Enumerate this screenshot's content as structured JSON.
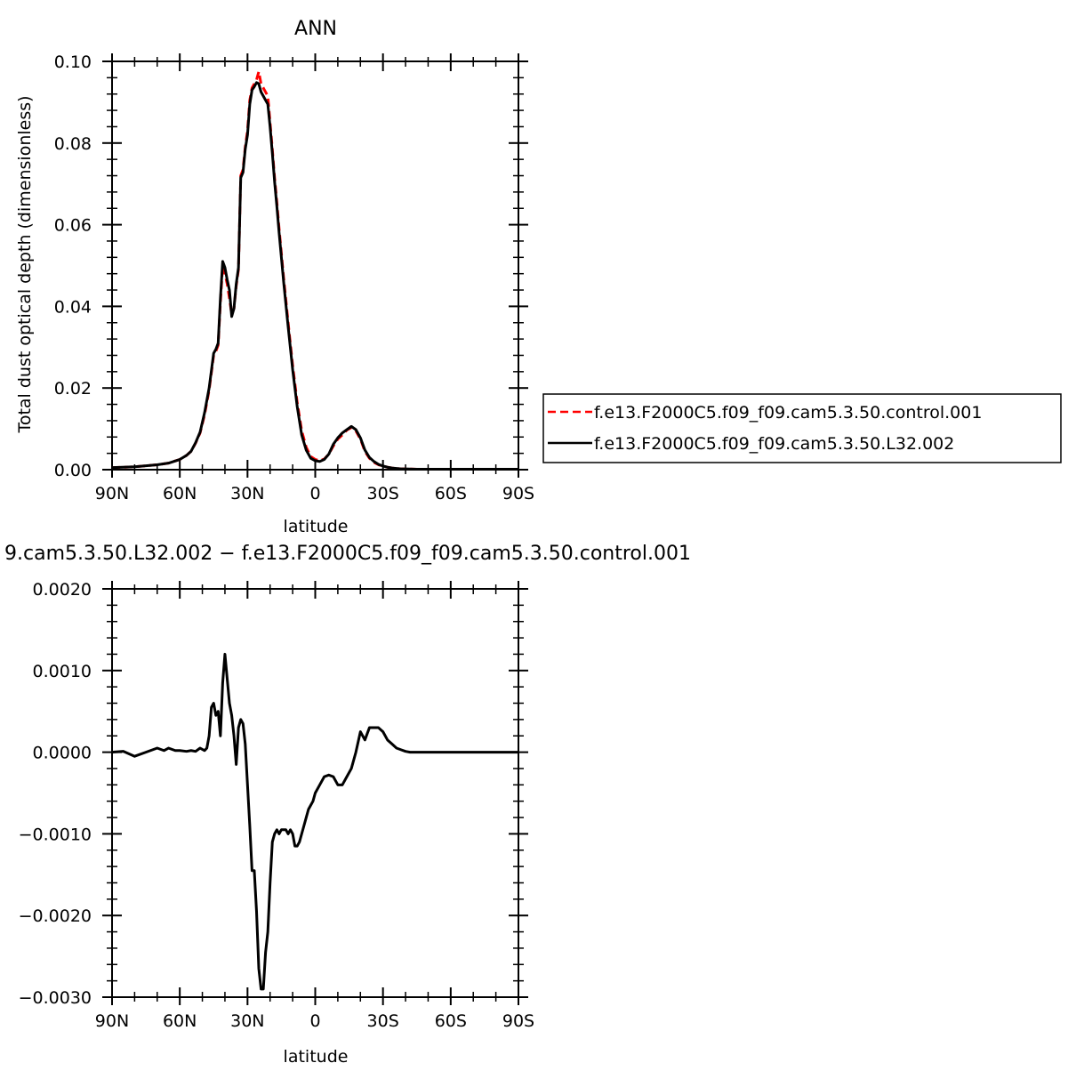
{
  "chart_data": [
    {
      "type": "line",
      "title": "ANN",
      "xlabel": "latitude",
      "ylabel": "Total dust optical depth (dimensionless)",
      "xlim": [
        90,
        -90
      ],
      "ylim": [
        0.0,
        0.1
      ],
      "x_tick_values": [
        90,
        60,
        30,
        0,
        -30,
        -60,
        -90
      ],
      "x_tick_labels": [
        "90N",
        "60N",
        "30N",
        "0",
        "30S",
        "60S",
        "90S"
      ],
      "y_tick_values": [
        0.0,
        0.02,
        0.04,
        0.06,
        0.08,
        0.1
      ],
      "y_tick_labels": [
        "0.00",
        "0.02",
        "0.04",
        "0.06",
        "0.08",
        "0.10"
      ],
      "grid": false,
      "legend_position": "right",
      "series": [
        {
          "name": "f.e13.F2000C5.f09_f09.cam5.3.50.control.001",
          "color": "#ff0000",
          "dash": "dashed",
          "x": [
            90,
            80,
            70,
            65,
            60,
            57,
            55,
            53,
            51,
            49,
            47,
            45,
            44,
            43,
            42,
            41,
            40,
            39,
            38,
            37,
            36,
            35,
            34,
            33,
            32,
            31,
            30,
            29,
            28,
            27,
            26,
            25,
            24,
            23,
            22,
            21,
            20,
            19,
            18,
            17,
            16,
            15,
            14,
            12,
            10,
            8,
            6,
            4,
            2,
            0,
            -2,
            -4,
            -6,
            -8,
            -10,
            -12,
            -14,
            -16,
            -18,
            -20,
            -22,
            -24,
            -26,
            -28,
            -30,
            -32,
            -34,
            -36,
            -38,
            -40,
            -45,
            -50,
            -60,
            -70,
            -80,
            -90
          ],
          "y": [
            0.0005,
            0.0007,
            0.0012,
            0.0016,
            0.0025,
            0.0035,
            0.0045,
            0.0065,
            0.009,
            0.0135,
            0.0195,
            0.028,
            0.029,
            0.0305,
            0.041,
            0.05,
            0.048,
            0.0455,
            0.042,
            0.038,
            0.0395,
            0.045,
            0.049,
            0.072,
            0.0735,
            0.079,
            0.083,
            0.0905,
            0.0935,
            0.0945,
            0.0955,
            0.0975,
            0.0945,
            0.0935,
            0.0925,
            0.0915,
            0.085,
            0.0785,
            0.0715,
            0.0655,
            0.059,
            0.053,
            0.047,
            0.036,
            0.0255,
            0.0165,
            0.0095,
            0.0055,
            0.0032,
            0.0025,
            0.0022,
            0.0026,
            0.0038,
            0.0058,
            0.0075,
            0.0085,
            0.0097,
            0.0103,
            0.0095,
            0.0075,
            0.0045,
            0.0028,
            0.0018,
            0.0012,
            0.0009,
            0.0006,
            0.0004,
            0.0003,
            0.0002,
            0.0002,
            0.0001,
            0.0001,
            0.0001,
            0.0001,
            0.0001,
            0.0001
          ]
        },
        {
          "name": "f.e13.F2000C5.f09_f09.cam5.3.50.L32.002",
          "color": "#000000",
          "dash": "solid",
          "x": [
            90,
            80,
            70,
            65,
            60,
            57,
            55,
            53,
            51,
            49,
            47,
            45,
            44,
            43,
            42,
            41,
            40,
            39,
            38,
            37,
            36,
            35,
            34,
            33,
            32,
            31,
            30,
            29,
            28,
            27,
            26,
            25,
            24,
            23,
            22,
            21,
            20,
            19,
            18,
            17,
            16,
            15,
            14,
            12,
            10,
            8,
            6,
            4,
            2,
            0,
            -2,
            -4,
            -6,
            -8,
            -10,
            -12,
            -14,
            -16,
            -18,
            -20,
            -22,
            -24,
            -26,
            -28,
            -30,
            -32,
            -34,
            -36,
            -38,
            -40,
            -45,
            -50,
            -60,
            -70,
            -80,
            -90
          ],
          "y": [
            0.0005,
            0.0007,
            0.0012,
            0.0016,
            0.0025,
            0.0035,
            0.0045,
            0.0066,
            0.0092,
            0.014,
            0.02,
            0.0285,
            0.0295,
            0.031,
            0.042,
            0.051,
            0.0495,
            0.0465,
            0.044,
            0.0375,
            0.0395,
            0.0455,
            0.0495,
            0.0715,
            0.0728,
            0.0785,
            0.082,
            0.0895,
            0.093,
            0.0938,
            0.0948,
            0.0945,
            0.0925,
            0.0915,
            0.0905,
            0.0895,
            0.084,
            0.0775,
            0.0705,
            0.0645,
            0.058,
            0.052,
            0.046,
            0.035,
            0.0245,
            0.0155,
            0.0085,
            0.0048,
            0.0028,
            0.0022,
            0.002,
            0.0025,
            0.0038,
            0.0062,
            0.0078,
            0.009,
            0.0098,
            0.0106,
            0.0098,
            0.0078,
            0.0048,
            0.003,
            0.002,
            0.0013,
            0.0009,
            0.0006,
            0.0004,
            0.0003,
            0.0002,
            0.0002,
            0.0001,
            0.0001,
            0.0001,
            0.0001,
            0.0001,
            0.0001
          ]
        }
      ]
    },
    {
      "type": "line",
      "title": "9.cam5.3.50.L32.002 − f.e13.F2000C5.f09_f09.cam5.3.50.control.001",
      "xlabel": "latitude",
      "ylabel": "",
      "xlim": [
        90,
        -90
      ],
      "ylim": [
        -0.003,
        0.002
      ],
      "x_tick_values": [
        90,
        60,
        30,
        0,
        -30,
        -60,
        -90
      ],
      "x_tick_labels": [
        "90N",
        "60N",
        "30N",
        "0",
        "30S",
        "60S",
        "90S"
      ],
      "y_tick_values": [
        0.002,
        0.001,
        0.0,
        -0.001,
        -0.002,
        -0.003
      ],
      "y_tick_labels": [
        "0.0020",
        "0.0010",
        "0.0000",
        "−0.0010",
        "−0.0020",
        "−0.0030"
      ],
      "grid": false,
      "series": [
        {
          "color": "#000000",
          "dash": "solid",
          "x": [
            90,
            85,
            80,
            75,
            70,
            67,
            65,
            62,
            60,
            57,
            55,
            53,
            51,
            49,
            48,
            47,
            46,
            45,
            44,
            43,
            42,
            41,
            40,
            39,
            38,
            37,
            36,
            35,
            34,
            33,
            32,
            31,
            30,
            29,
            28,
            27,
            26,
            25,
            24,
            23,
            22,
            21,
            20,
            19,
            18,
            17,
            16,
            15,
            14,
            13,
            12,
            11,
            10,
            9,
            8,
            7,
            6,
            5,
            4,
            3,
            2,
            1,
            0,
            -2,
            -4,
            -6,
            -8,
            -10,
            -12,
            -14,
            -16,
            -18,
            -20,
            -22,
            -24,
            -26,
            -28,
            -30,
            -32,
            -34,
            -36,
            -38,
            -40,
            -42,
            -45,
            -50,
            -60,
            -70,
            -80,
            -90
          ],
          "y": [
            0.0,
            1e-05,
            -5e-05,
            0.0,
            5e-05,
            2e-05,
            5e-05,
            2e-05,
            2e-05,
            1e-05,
            2e-05,
            1e-05,
            5e-05,
            2e-05,
            5e-05,
            0.0002,
            0.00055,
            0.0006,
            0.00045,
            0.0005,
            0.0002,
            0.00085,
            0.0012,
            0.0009,
            0.0006,
            0.00045,
            0.0002,
            -0.00015,
            0.0003,
            0.0004,
            0.00035,
            0.0001,
            -0.0004,
            -0.0009,
            -0.00145,
            -0.00145,
            -0.00195,
            -0.00265,
            -0.0029,
            -0.0029,
            -0.00245,
            -0.0022,
            -0.0016,
            -0.0011,
            -0.001,
            -0.00095,
            -0.001,
            -0.00095,
            -0.00095,
            -0.00095,
            -0.001,
            -0.00095,
            -0.001,
            -0.00115,
            -0.00115,
            -0.0011,
            -0.001,
            -0.0009,
            -0.0008,
            -0.0007,
            -0.00065,
            -0.0006,
            -0.0005,
            -0.0004,
            -0.0003,
            -0.00028,
            -0.0003,
            -0.0004,
            -0.0004,
            -0.0003,
            -0.0002,
            0.0,
            0.00025,
            0.00015,
            0.0003,
            0.0003,
            0.0003,
            0.00025,
            0.00015,
            0.0001,
            5e-05,
            3e-05,
            1e-05,
            0.0,
            0.0,
            0.0,
            0.0,
            0.0,
            0.0,
            0.0
          ]
        }
      ]
    }
  ]
}
